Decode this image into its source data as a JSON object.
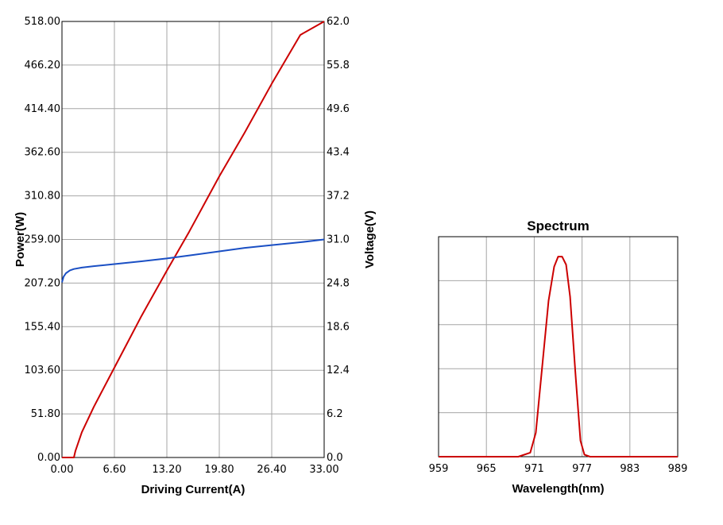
{
  "chart_data": [
    {
      "type": "line",
      "title": "",
      "xlabel": "Driving Current(A)",
      "ylabel": "Power(W)",
      "y2label": "Voltage(V)",
      "xlim": [
        0,
        33
      ],
      "ylim": [
        0,
        518
      ],
      "y2lim": [
        0,
        62
      ],
      "x_ticks": [
        "0.00",
        "6.60",
        "13.20",
        "19.80",
        "26.40",
        "33.00"
      ],
      "y_ticks": [
        "0.00",
        "51.80",
        "103.60",
        "155.40",
        "207.20",
        "259.00",
        "310.80",
        "362.60",
        "414.40",
        "466.20",
        "518.00"
      ],
      "y2_ticks": [
        "0.0",
        "6.2",
        "12.4",
        "18.6",
        "24.8",
        "31.0",
        "37.2",
        "43.4",
        "49.6",
        "55.8",
        "62.0"
      ],
      "grid": true,
      "series": [
        {
          "axis": "left",
          "color": "#cc0000",
          "x": [
            0,
            1.5,
            1.7,
            2.5,
            4.0,
            6.0,
            8.0,
            10.0,
            13.2,
            16.0,
            19.8,
            23.0,
            26.4,
            30.0,
            33.0
          ],
          "y": [
            0,
            0,
            8,
            30,
            60,
            96,
            132,
            168,
            222,
            268,
            334,
            386,
            444,
            502,
            518
          ]
        },
        {
          "axis": "right",
          "color": "#1a4fc4",
          "x": [
            0,
            0.2,
            0.5,
            1.0,
            1.5,
            2.5,
            4.0,
            6.6,
            10.0,
            13.2,
            16.5,
            19.8,
            23.0,
            26.4,
            30.0,
            33.0
          ],
          "y": [
            24.9,
            25.7,
            26.2,
            26.6,
            26.8,
            27.0,
            27.2,
            27.5,
            27.9,
            28.3,
            28.8,
            29.3,
            29.8,
            30.2,
            30.6,
            31.0
          ]
        }
      ]
    },
    {
      "type": "line",
      "title": "Spectrum",
      "xlabel": "Wavelength(nm)",
      "ylabel": "",
      "xlim": [
        959,
        989
      ],
      "x_ticks": [
        "959",
        "965",
        "971",
        "977",
        "983",
        "989"
      ],
      "ylim": [
        0,
        1.1
      ],
      "grid": true,
      "series": [
        {
          "color": "#cc0000",
          "x": [
            959,
            969,
            970.5,
            971.2,
            972,
            972.8,
            973.5,
            974,
            974.5,
            975,
            975.5,
            976.2,
            976.8,
            977.3,
            978,
            980,
            989
          ],
          "y": [
            0.0,
            0.0,
            0.02,
            0.12,
            0.45,
            0.78,
            0.95,
            1.0,
            1.0,
            0.96,
            0.8,
            0.4,
            0.08,
            0.01,
            0.0,
            0.0,
            0.0
          ]
        }
      ]
    }
  ]
}
